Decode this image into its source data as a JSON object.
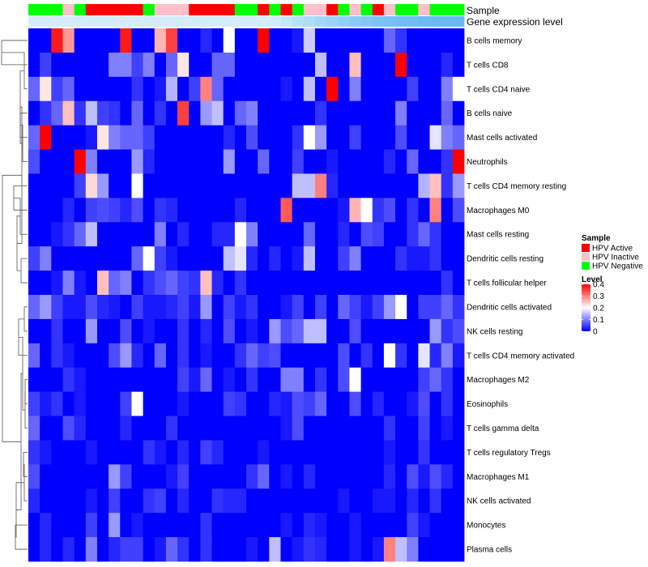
{
  "chart_data": {
    "type": "heatmap",
    "title": "",
    "xlabel": "",
    "ylabel": "",
    "annotation_tracks": [
      {
        "name": "Sample"
      },
      {
        "name": "Gene expression level"
      }
    ],
    "sample_groups": [
      "N",
      "N",
      "N",
      "I",
      "N",
      "A",
      "A",
      "A",
      "A",
      "A",
      "N",
      "I",
      "I",
      "I",
      "A",
      "A",
      "A",
      "A",
      "N",
      "N",
      "A",
      "N",
      "A",
      "N",
      "I",
      "I",
      "A",
      "N",
      "I",
      "N",
      "A",
      "I",
      "N",
      "N",
      "I",
      "N",
      "N",
      "N"
    ],
    "expression_shades": [
      "#d4ecfc",
      "#d4ecfc",
      "#d4ecfc",
      "#d4ecfc",
      "#d4ecfc",
      "#d4ecfc",
      "#d4ecfc",
      "#d4ecfc",
      "#d4ecfc",
      "#d4ecfc",
      "#d4ecfc",
      "#d4ecfc",
      "#d4ecfc",
      "#d4ecfc",
      "#d4ecfc",
      "#d4ecfc",
      "#d4ecfc",
      "#d4ecfc",
      "#d4ecfc",
      "#d4ecfc",
      "#d4ecfc",
      "#d4ecfc",
      "#c6e6fb",
      "#b8e0fa",
      "#aedcf9",
      "#a4d7f9",
      "#9ad3f8",
      "#92cff8",
      "#8acbf7",
      "#82c7f6",
      "#7cc4f6",
      "#76c1f5",
      "#72bff5",
      "#6ebdf5",
      "#6bbcf4",
      "#69bbf4",
      "#68baf4",
      "#67b9f4"
    ],
    "rows": [
      "B cells memory",
      "T cells CD8",
      "T cells CD4 naive",
      "B cells naive",
      "Mast cells activated",
      "Neutrophils",
      "T cells CD4 memory resting",
      "Macrophages M0",
      "Mast cells resting",
      "Dendritic cells resting",
      "T cells follicular helper",
      "Dendritic cells activated",
      "NK cells resting",
      "T cells CD4 memory activated",
      "Macrophages M2",
      "Eosinophils",
      "T cells gamma delta",
      "T cells regulatory  Tregs",
      "Macrophages M1",
      "NK cells activated",
      "Monocytes",
      "Plasma cells"
    ],
    "values": [
      [
        0,
        0,
        0.38,
        0.28,
        0,
        0,
        0,
        0,
        0.38,
        0,
        0,
        0.26,
        0.35,
        0,
        0,
        0.03,
        0,
        0.2,
        0,
        0,
        0.4,
        0,
        0,
        0.02,
        0.16,
        0,
        0,
        0,
        0,
        0,
        0,
        0.08,
        0.04,
        0,
        0,
        0,
        0,
        0
      ],
      [
        0,
        0.05,
        0,
        0,
        0,
        0,
        0,
        0.1,
        0.1,
        0.05,
        0.1,
        0,
        0.08,
        0.22,
        0,
        0,
        0.08,
        0.08,
        0,
        0,
        0,
        0,
        0,
        0,
        0,
        0.15,
        0,
        0,
        0.25,
        0,
        0,
        0,
        0.4,
        0,
        0,
        0,
        0.03,
        0
      ],
      [
        0.08,
        0.22,
        0.05,
        0.08,
        0,
        0,
        0,
        0,
        0,
        0.04,
        0,
        0.02,
        0.14,
        0,
        0.05,
        0.3,
        0.08,
        0,
        0,
        0,
        0,
        0,
        0.02,
        0,
        0.15,
        0,
        0.4,
        0,
        0.1,
        0,
        0,
        0,
        0,
        0.05,
        0,
        0,
        0.1,
        0.2
      ],
      [
        0,
        0.04,
        0.08,
        0.25,
        0.04,
        0.15,
        0.05,
        0.04,
        0,
        0.08,
        0,
        0.04,
        0,
        0.35,
        0,
        0.12,
        0.15,
        0,
        0.08,
        0.1,
        0,
        0,
        0,
        0,
        0,
        0.04,
        0,
        0,
        0,
        0,
        0,
        0,
        0.1,
        0,
        0,
        0,
        0.08,
        0
      ],
      [
        0.08,
        0.4,
        0,
        0,
        0,
        0.02,
        0.22,
        0.1,
        0.08,
        0.08,
        0.05,
        0,
        0,
        0,
        0,
        0,
        0,
        0.03,
        0,
        0.06,
        0,
        0,
        0,
        0.04,
        0.2,
        0.12,
        0,
        0,
        0.05,
        0,
        0,
        0,
        0.06,
        0,
        0,
        0.18,
        0.1,
        0.08
      ],
      [
        0.06,
        0,
        0,
        0,
        0.4,
        0.1,
        0,
        0,
        0,
        0.12,
        0.03,
        0,
        0,
        0,
        0,
        0,
        0,
        0.12,
        0,
        0,
        0.08,
        0,
        0,
        0.05,
        0,
        0,
        0.02,
        0,
        0,
        0,
        0,
        0.03,
        0,
        0.08,
        0,
        0,
        0.04,
        0.4
      ],
      [
        0,
        0,
        0,
        0,
        0.05,
        0.23,
        0.12,
        0,
        0,
        0.2,
        0,
        0,
        0,
        0,
        0,
        0,
        0,
        0,
        0,
        0,
        0,
        0,
        0,
        0.15,
        0.15,
        0.3,
        0.03,
        0,
        0,
        0,
        0,
        0,
        0,
        0,
        0.14,
        0.25,
        0.04,
        0.12
      ],
      [
        0,
        0,
        0,
        0.03,
        0,
        0.05,
        0.06,
        0.05,
        0.03,
        0.06,
        0,
        0.04,
        0.03,
        0,
        0,
        0,
        0,
        0,
        0.03,
        0,
        0,
        0,
        0.33,
        0,
        0,
        0,
        0,
        0.02,
        0.26,
        0.2,
        0.04,
        0.06,
        0,
        0.04,
        0,
        0.3,
        0,
        0.06
      ],
      [
        0,
        0,
        0.02,
        0.04,
        0.08,
        0.15,
        0,
        0,
        0,
        0,
        0,
        0.1,
        0,
        0.03,
        0,
        0,
        0.03,
        0.03,
        0.2,
        0.1,
        0,
        0,
        0,
        0,
        0.08,
        0,
        0,
        0.03,
        0,
        0.06,
        0.05,
        0,
        0,
        0.04,
        0.08,
        0.04,
        0,
        0
      ],
      [
        0.05,
        0.1,
        0,
        0,
        0,
        0,
        0,
        0,
        0,
        0.08,
        0.2,
        0.05,
        0.02,
        0,
        0,
        0,
        0,
        0.15,
        0.18,
        0.03,
        0,
        0.03,
        0,
        0.02,
        0.15,
        0,
        0,
        0.05,
        0.1,
        0,
        0,
        0,
        0.04,
        0.02,
        0.02,
        0.04,
        0,
        0
      ],
      [
        0,
        0,
        0.02,
        0.1,
        0.02,
        0,
        0.25,
        0.08,
        0.1,
        0,
        0.04,
        0.06,
        0.08,
        0.05,
        0.04,
        0.25,
        0.03,
        0,
        0.04,
        0,
        0,
        0,
        0,
        0,
        0,
        0,
        0,
        0,
        0,
        0,
        0,
        0,
        0,
        0,
        0,
        0,
        0.04,
        0
      ],
      [
        0.08,
        0.12,
        0.05,
        0.02,
        0.02,
        0.06,
        0.03,
        0.02,
        0,
        0.05,
        0.02,
        0.02,
        0.03,
        0.05,
        0.02,
        0.12,
        0,
        0.05,
        0.02,
        0.04,
        0,
        0,
        0.02,
        0.05,
        0,
        0.05,
        0,
        0.08,
        0.05,
        0.02,
        0.05,
        0.12,
        0.2,
        0,
        0.05,
        0.05,
        0.08,
        0.04
      ],
      [
        0,
        0,
        0.04,
        0,
        0,
        0.12,
        0,
        0,
        0.06,
        0,
        0.02,
        0,
        0,
        0.04,
        0,
        0.03,
        0,
        0.06,
        0,
        0.02,
        0,
        0.12,
        0.06,
        0.08,
        0.15,
        0.15,
        0,
        0,
        0.06,
        0,
        0,
        0,
        0,
        0,
        0,
        0.12,
        0.04,
        0.06
      ],
      [
        0.08,
        0,
        0.04,
        0.02,
        0,
        0,
        0,
        0.06,
        0.12,
        0.03,
        0,
        0.08,
        0,
        0.04,
        0,
        0.02,
        0,
        0,
        0.04,
        0.08,
        0.05,
        0.06,
        0,
        0,
        0,
        0,
        0,
        0.06,
        0,
        0.04,
        0,
        0.2,
        0.04,
        0,
        0.18,
        0.03,
        0.1,
        0.02
      ],
      [
        0,
        0,
        0,
        0.04,
        0.02,
        0,
        0,
        0,
        0,
        0,
        0,
        0,
        0,
        0.05,
        0.02,
        0.08,
        0,
        0.02,
        0,
        0.04,
        0,
        0,
        0.1,
        0.1,
        0,
        0.04,
        0,
        0.06,
        0.2,
        0,
        0,
        0,
        0,
        0,
        0.05,
        0.08,
        0.04,
        0
      ],
      [
        0.05,
        0.02,
        0.04,
        0,
        0.02,
        0,
        0,
        0,
        0.05,
        0.2,
        0,
        0,
        0,
        0.02,
        0,
        0,
        0,
        0.05,
        0.04,
        0,
        0,
        0.03,
        0.02,
        0.06,
        0.05,
        0.08,
        0,
        0,
        0.06,
        0,
        0.03,
        0,
        0,
        0.02,
        0.06,
        0,
        0.04,
        0
      ],
      [
        0.08,
        0,
        0,
        0.06,
        0.03,
        0,
        0,
        0,
        0.03,
        0,
        0,
        0,
        0.04,
        0,
        0,
        0,
        0,
        0,
        0,
        0,
        0,
        0,
        0.02,
        0.06,
        0,
        0,
        0,
        0,
        0,
        0,
        0,
        0.04,
        0,
        0,
        0.05,
        0,
        0.02,
        0
      ],
      [
        0.04,
        0.02,
        0,
        0,
        0,
        0.02,
        0,
        0,
        0,
        0,
        0.04,
        0.02,
        0,
        0.03,
        0,
        0.05,
        0.03,
        0,
        0,
        0,
        0.02,
        0,
        0,
        0,
        0,
        0,
        0,
        0,
        0,
        0,
        0,
        0.02,
        0,
        0,
        0.04,
        0,
        0,
        0
      ],
      [
        0.06,
        0,
        0,
        0,
        0,
        0,
        0,
        0.12,
        0.05,
        0,
        0,
        0,
        0.02,
        0.05,
        0,
        0,
        0,
        0,
        0,
        0.04,
        0.08,
        0,
        0.02,
        0,
        0.03,
        0,
        0,
        0,
        0,
        0,
        0,
        0.03,
        0,
        0.06,
        0.02,
        0.06,
        0.03,
        0
      ],
      [
        0.03,
        0,
        0,
        0,
        0,
        0.02,
        0,
        0.05,
        0,
        0,
        0.04,
        0.05,
        0,
        0.03,
        0,
        0,
        0.04,
        0.03,
        0.03,
        0,
        0,
        0,
        0,
        0,
        0,
        0,
        0,
        0.02,
        0,
        0,
        0.02,
        0.02,
        0,
        0.03,
        0,
        0.04,
        0,
        0
      ],
      [
        0,
        0.03,
        0,
        0,
        0,
        0.05,
        0,
        0.12,
        0,
        0.02,
        0,
        0,
        0,
        0,
        0,
        0.04,
        0,
        0,
        0,
        0,
        0,
        0,
        0.02,
        0,
        0.03,
        0.02,
        0,
        0,
        0.02,
        0,
        0,
        0,
        0,
        0.05,
        0.02,
        0,
        0,
        0
      ],
      [
        0,
        0.03,
        0,
        0.03,
        0,
        0.1,
        0,
        0.03,
        0.05,
        0.05,
        0,
        0.02,
        0.08,
        0.04,
        0,
        0.04,
        0,
        0,
        0,
        0.02,
        0,
        0.15,
        0,
        0.02,
        0.04,
        0.03,
        0,
        0,
        0.02,
        0,
        0.02,
        0.3,
        0.15,
        0.1,
        0,
        0,
        0,
        0
      ]
    ],
    "color_scale": {
      "min": 0,
      "max": 0.4,
      "low": "#0000ff",
      "mid": "#ffffff",
      "mid_value": 0.2,
      "high": "#ff0000"
    },
    "group_colors": {
      "A": "#ff0000",
      "I": "#ffc0cb",
      "N": "#00ff00"
    },
    "legend": {
      "placement": "right",
      "sample_title": "Sample",
      "sample_entries": [
        {
          "key": "A",
          "label": "HPV Active"
        },
        {
          "key": "I",
          "label": "HPV Inactive"
        },
        {
          "key": "N",
          "label": "HPV Negative"
        }
      ],
      "level_title": "Level",
      "level_ticks": [
        {
          "value": 0.4,
          "label": "0.4"
        },
        {
          "value": 0.3,
          "label": "0.3"
        },
        {
          "value": 0.2,
          "label": "0.2"
        },
        {
          "value": 0.1,
          "label": "0.1"
        },
        {
          "value": 0,
          "label": "0"
        }
      ]
    },
    "row_dendrogram": true,
    "grid": false
  }
}
